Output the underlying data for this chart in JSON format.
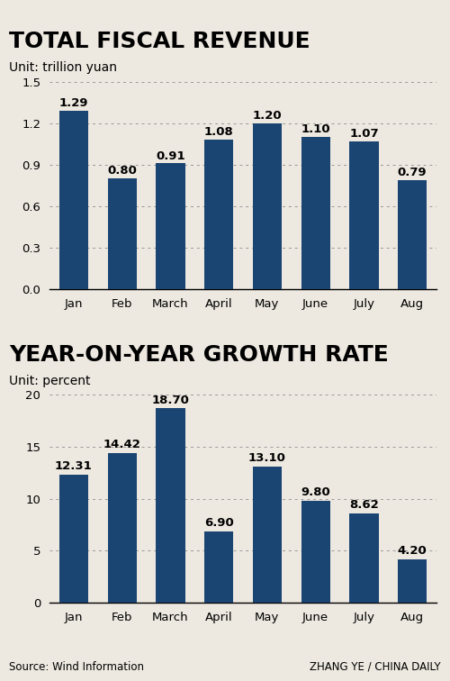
{
  "title1": "TOTAL FISCAL REVENUE",
  "unit1": "Unit: trillion yuan",
  "title2": "YEAR-ON-YEAR GROWTH RATE",
  "unit2": "Unit: percent",
  "months": [
    "Jan",
    "Feb",
    "March",
    "April",
    "May",
    "June",
    "July",
    "Aug"
  ],
  "revenue": [
    1.29,
    0.8,
    0.91,
    1.08,
    1.2,
    1.1,
    1.07,
    0.79
  ],
  "growth": [
    12.31,
    14.42,
    18.7,
    6.9,
    13.1,
    9.8,
    8.62,
    4.2
  ],
  "bar_color": "#1a4472",
  "ylim1": [
    0,
    1.5
  ],
  "yticks1": [
    0,
    0.3,
    0.6,
    0.9,
    1.2,
    1.5
  ],
  "ylim2": [
    0,
    20
  ],
  "yticks2": [
    0,
    5,
    10,
    15,
    20
  ],
  "source_text": "Source: Wind Information",
  "credit_text": "ZHANG YE / CHINA DAILY",
  "bg_color": "#ede8e0",
  "title_fontsize": 18,
  "unit_fontsize": 10,
  "tick_fontsize": 9.5,
  "value_fontsize": 9.5
}
